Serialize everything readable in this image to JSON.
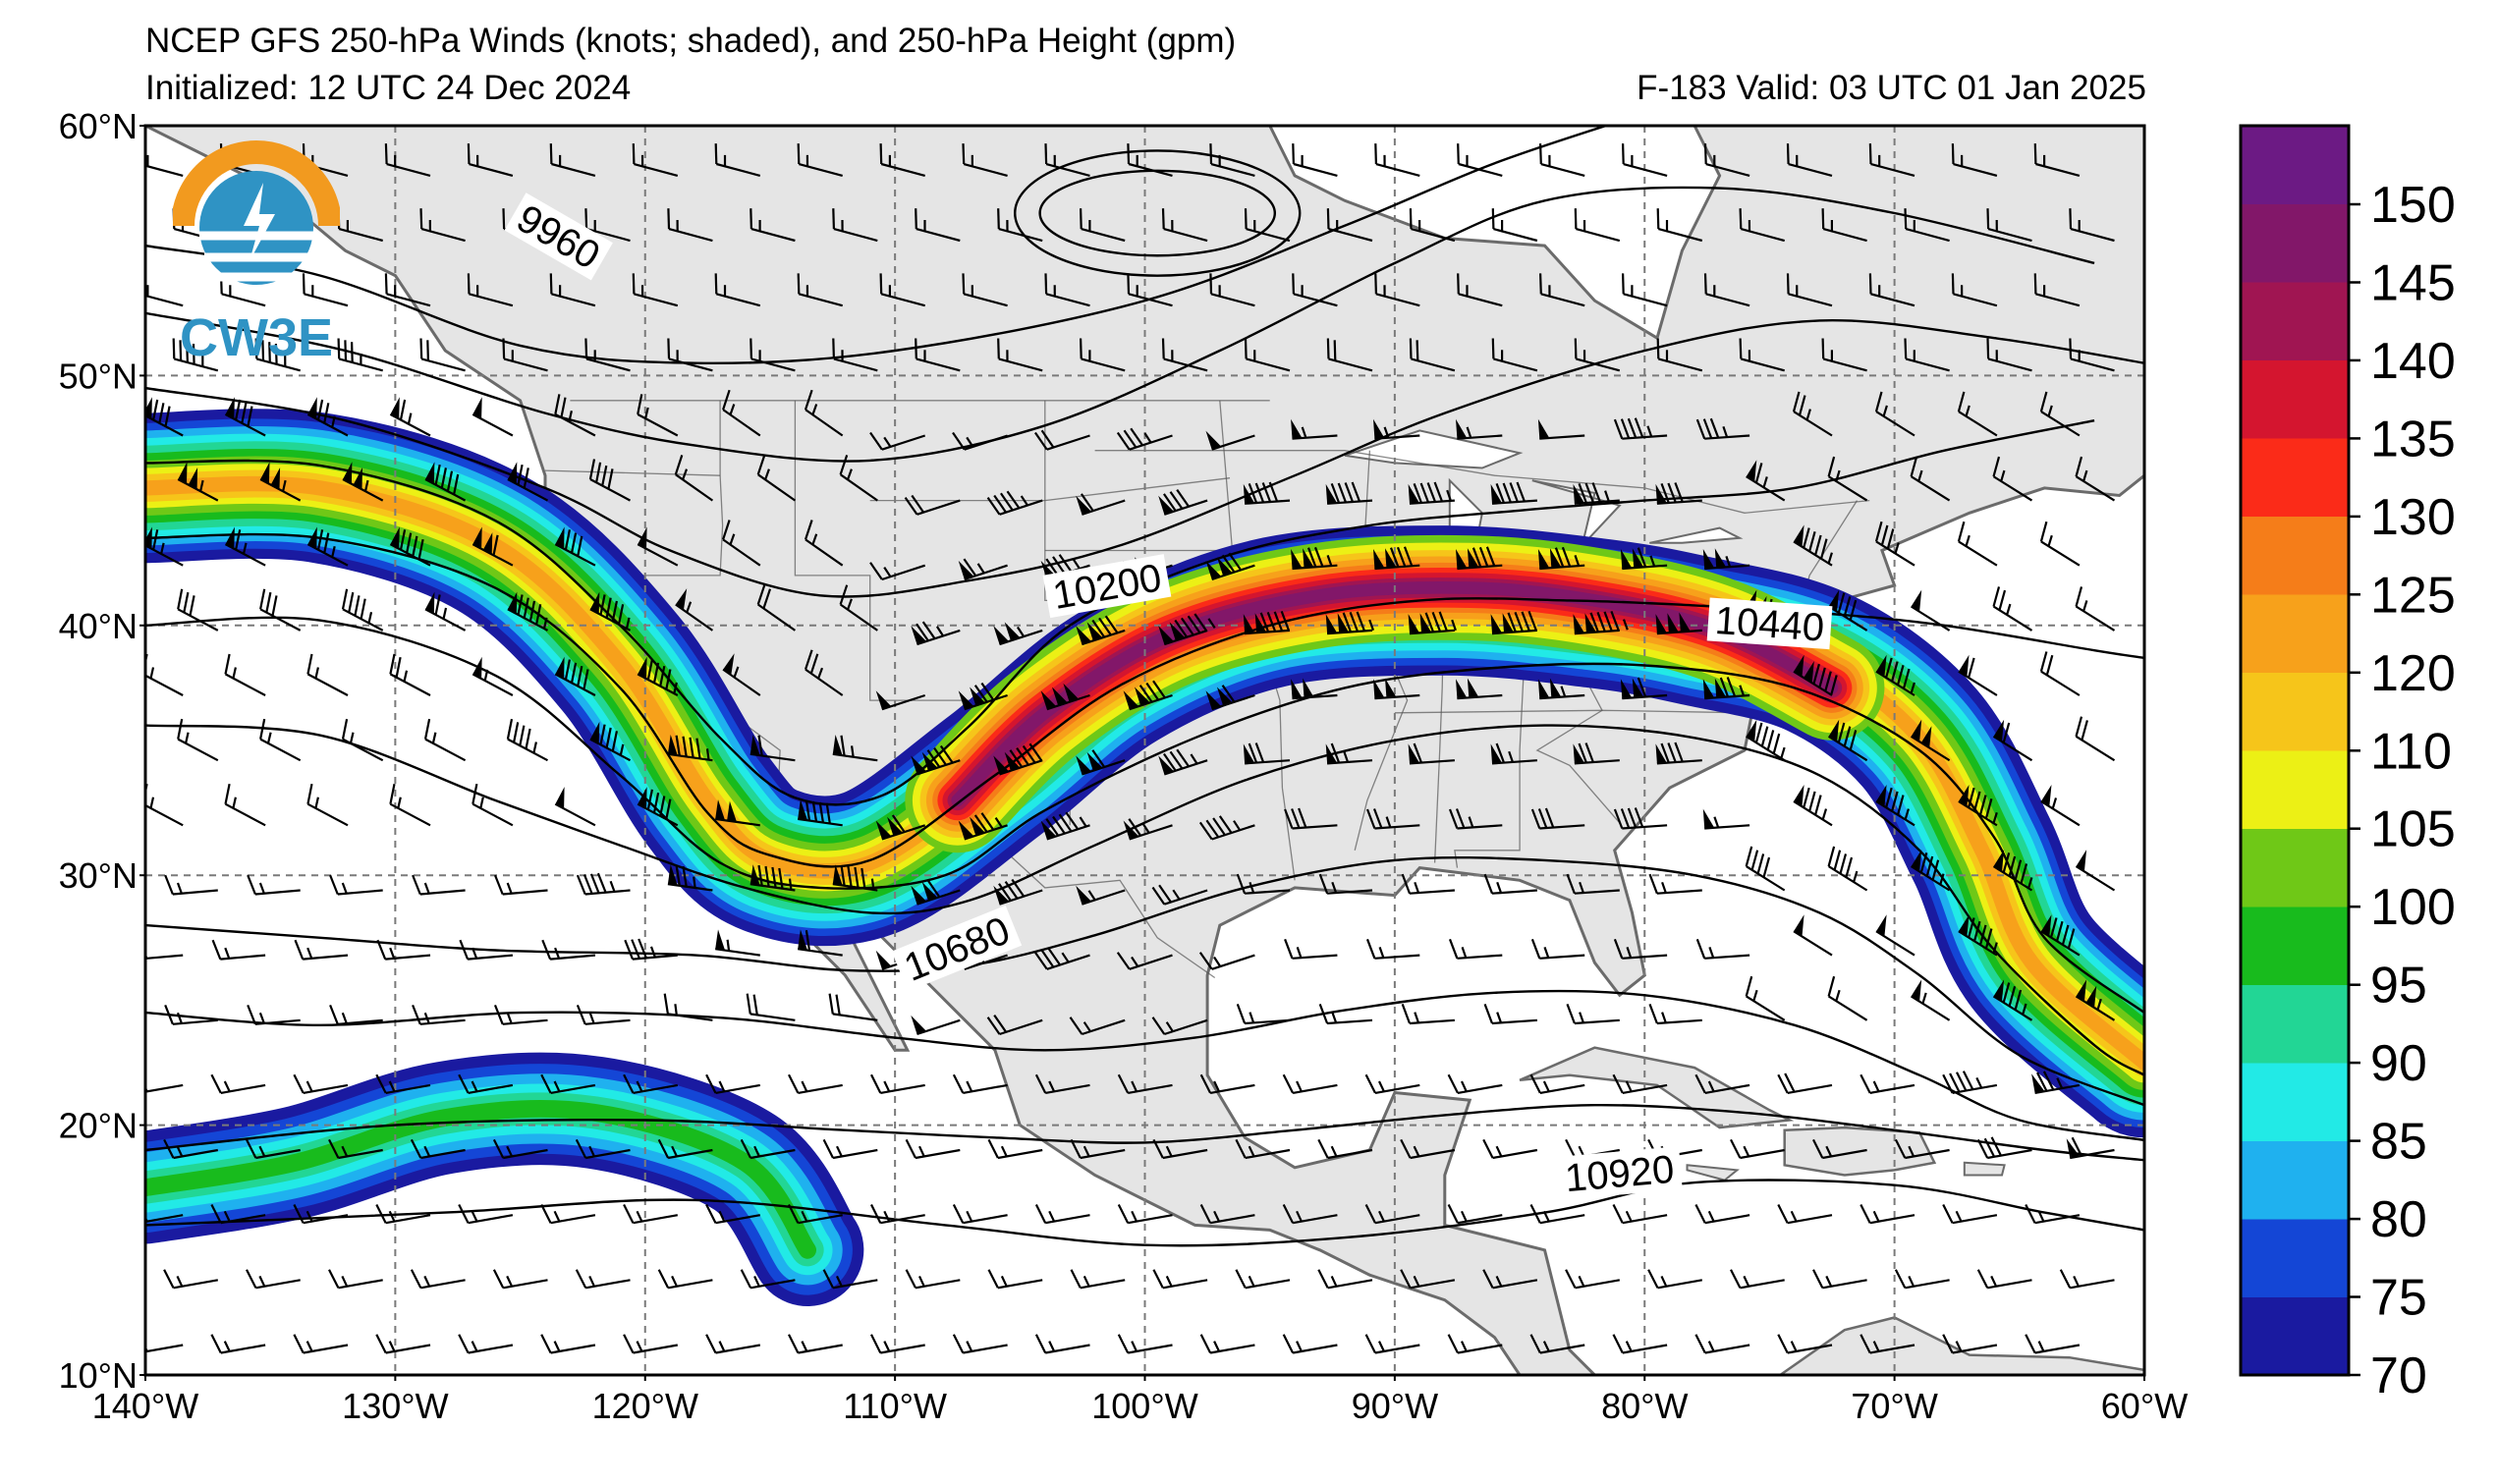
{
  "header": {
    "title": "NCEP GFS 250-hPa Winds (knots; shaded), and 250-hPa Height (gpm)",
    "initialized": "Initialized: 12 UTC 24 Dec 2024",
    "valid": "F-183  Valid: 03 UTC 01 Jan 2025"
  },
  "logo": {
    "text": "CW3E",
    "icon": "cw3e-logo"
  },
  "map": {
    "projection": "equirectangular",
    "lon_range": [
      -140,
      -60
    ],
    "lat_range": [
      10,
      60
    ],
    "gridlines": true,
    "lat_labels": [
      "60°N",
      "50°N",
      "40°N",
      "30°N",
      "20°N",
      "10°N"
    ],
    "lon_labels": [
      "140°W",
      "130°W",
      "120°W",
      "110°W",
      "100°W",
      "90°W",
      "80°W",
      "70°W",
      "60°W"
    ],
    "contour_labels": [
      {
        "text": "9960",
        "lon": -123.5,
        "lat": 55.5,
        "angle": 30
      },
      {
        "text": "10200",
        "lon": -101.5,
        "lat": 41.5,
        "angle": -10
      },
      {
        "text": "10440",
        "lon": -75.0,
        "lat": 40.0,
        "angle": 4
      },
      {
        "text": "10680",
        "lon": -107.5,
        "lat": 27.0,
        "angle": -22
      },
      {
        "text": "10920",
        "lon": -81.0,
        "lat": 18.0,
        "angle": -5
      }
    ],
    "land_color": "#e5e5e5",
    "ocean_color": "#ffffff",
    "coast_color": "#6b6b6b"
  },
  "colorbar": {
    "ticks": [
      "150",
      "145",
      "140",
      "135",
      "130",
      "125",
      "120",
      "110",
      "105",
      "100",
      "95",
      "90",
      "85",
      "80",
      "75",
      "70"
    ],
    "colors": [
      "#1a1aa0",
      "#1446d6",
      "#1fb1ef",
      "#22eae6",
      "#22d695",
      "#18bb1d",
      "#6fc817",
      "#ecf015",
      "#f6c51a",
      "#f7a11b",
      "#f57d19",
      "#fb2b18",
      "#d4152f",
      "#a01552",
      "#821769",
      "#6c1a84"
    ]
  }
}
